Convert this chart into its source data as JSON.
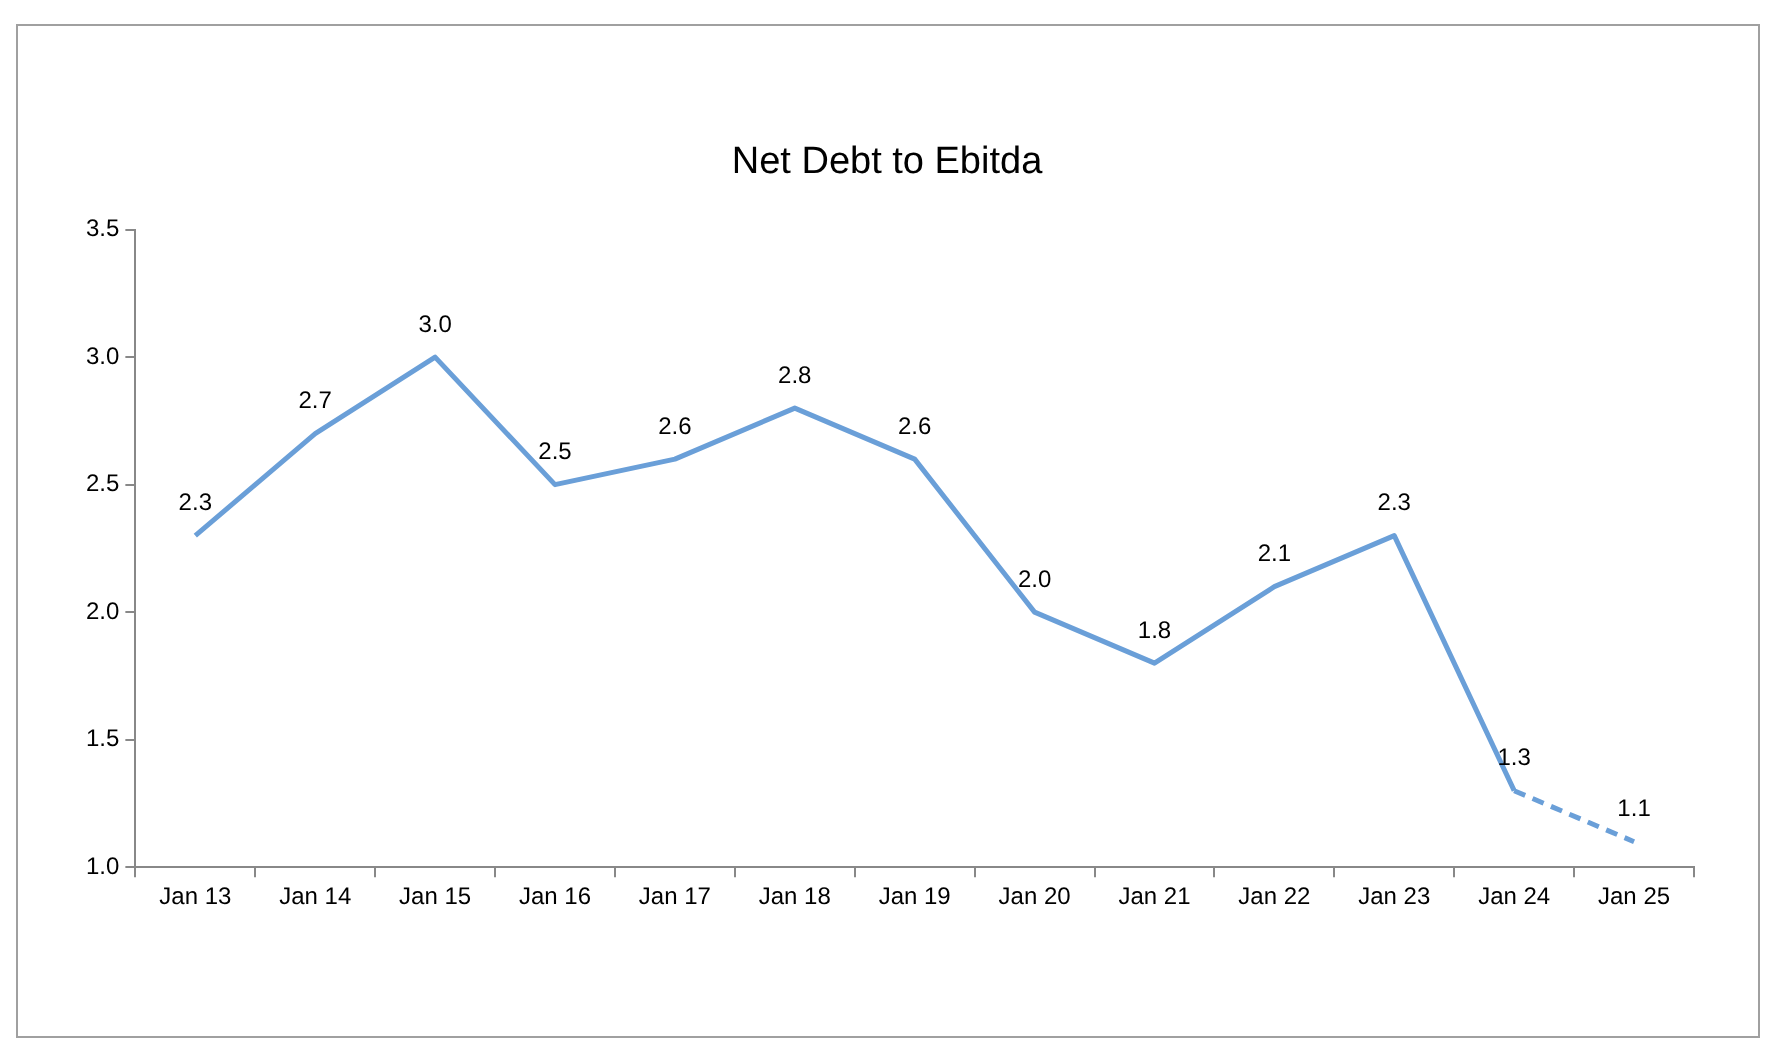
{
  "chart_data": {
    "type": "line",
    "title": "Net Debt to Ebitda",
    "categories": [
      "Jan 13",
      "Jan 14",
      "Jan 15",
      "Jan 16",
      "Jan 17",
      "Jan 18",
      "Jan 19",
      "Jan 20",
      "Jan 21",
      "Jan 22",
      "Jan 23",
      "Jan 24",
      "Jan 25"
    ],
    "series": [
      {
        "color": "#6a9fd8",
        "line_style": "solid",
        "values": [
          2.3,
          2.7,
          3.0,
          2.5,
          2.6,
          2.8,
          2.6,
          2.0,
          1.8,
          2.1,
          2.3,
          1.3,
          null
        ],
        "value_labels": [
          "2.3",
          "2.7",
          "3.0",
          "2.5",
          "2.6",
          "2.8",
          "2.6",
          "2.0",
          "1.8",
          "2.1",
          "2.3",
          "1.3",
          null
        ]
      },
      {
        "color": "#6a9fd8",
        "line_style": "dashed",
        "values": [
          null,
          null,
          null,
          null,
          null,
          null,
          null,
          null,
          null,
          null,
          null,
          1.3,
          1.1
        ],
        "value_labels": [
          null,
          null,
          null,
          null,
          null,
          null,
          null,
          null,
          null,
          null,
          null,
          null,
          "1.1"
        ]
      }
    ],
    "ylim": [
      1.0,
      3.5
    ],
    "yticks": [
      {
        "value": 1.0,
        "label": "1.0"
      },
      {
        "value": 1.5,
        "label": "1.5"
      },
      {
        "value": 2.0,
        "label": "2.0"
      },
      {
        "value": 2.5,
        "label": "2.5"
      },
      {
        "value": 3.0,
        "label": "3.0"
      },
      {
        "value": 3.5,
        "label": "3.5"
      }
    ],
    "grid": false,
    "legend": false,
    "marker": "none"
  }
}
